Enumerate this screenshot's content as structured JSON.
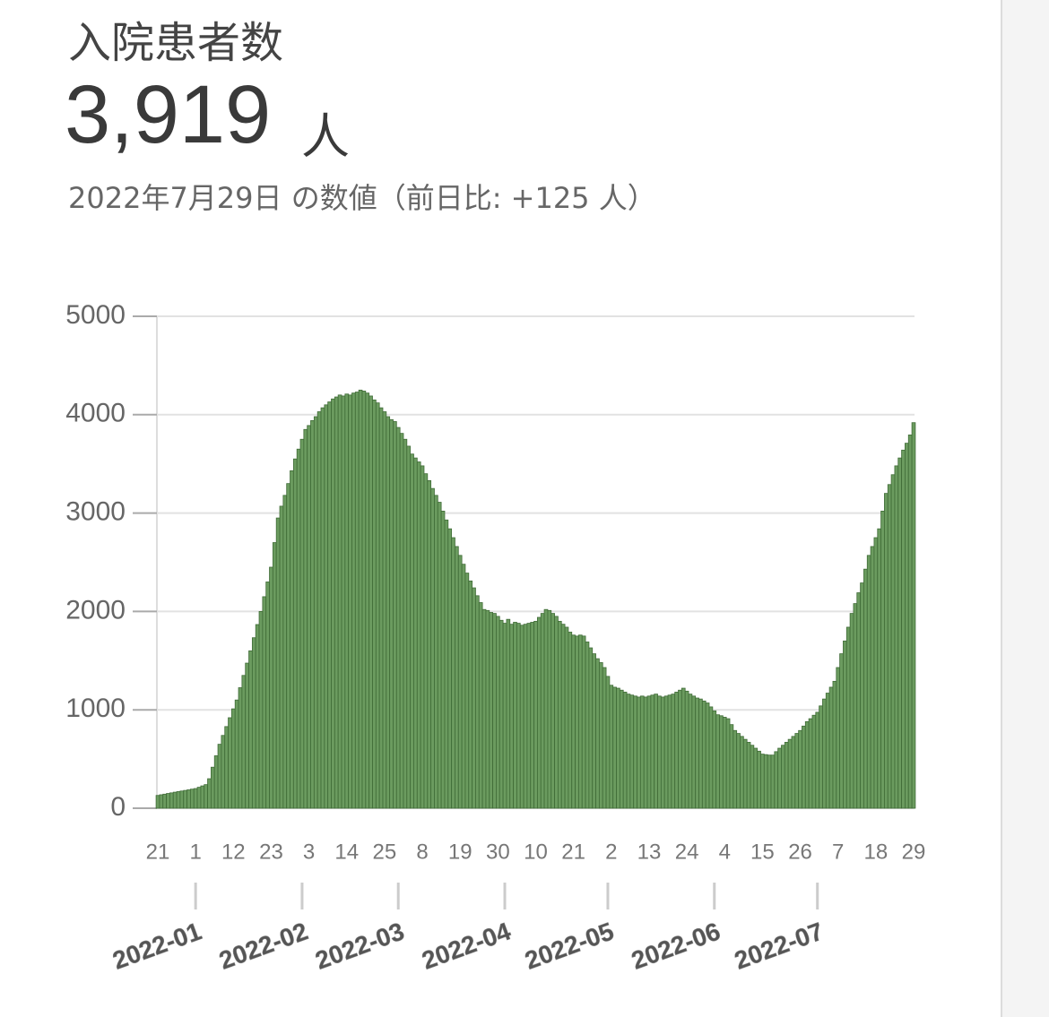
{
  "header": {
    "title": "入院患者数",
    "value": "3,919",
    "unit": "人",
    "subtitle": "2022年7月29日 の数値（前日比: +125 人）"
  },
  "chart_data": {
    "type": "bar",
    "color": "#6b9b5f",
    "ylim": [
      0,
      5000
    ],
    "yticks": [
      0,
      1000,
      2000,
      3000,
      4000,
      5000
    ],
    "grid": true,
    "categories": [
      "21",
      null,
      null,
      null,
      null,
      null,
      null,
      null,
      null,
      null,
      null,
      "1",
      null,
      null,
      null,
      null,
      null,
      null,
      null,
      null,
      null,
      null,
      "12",
      null,
      null,
      null,
      null,
      null,
      null,
      null,
      null,
      null,
      null,
      "23",
      null,
      null,
      null,
      null,
      null,
      null,
      null,
      null,
      null,
      null,
      "3",
      null,
      null,
      null,
      null,
      null,
      null,
      null,
      null,
      null,
      null,
      "14",
      null,
      null,
      null,
      null,
      null,
      null,
      null,
      null,
      null,
      null,
      "25",
      null,
      null,
      null,
      null,
      null,
      null,
      null,
      null,
      null,
      null,
      "8",
      null,
      null,
      null,
      null,
      null,
      null,
      null,
      null,
      null,
      null,
      "19",
      null,
      null,
      null,
      null,
      null,
      null,
      null,
      null,
      null,
      null,
      "30",
      null,
      null,
      null,
      null,
      null,
      null,
      null,
      null,
      null,
      null,
      "10",
      null,
      null,
      null,
      null,
      null,
      null,
      null,
      null,
      null,
      null,
      "21",
      null,
      null,
      null,
      null,
      null,
      null,
      null,
      null,
      null,
      null,
      "2",
      null,
      null,
      null,
      null,
      null,
      null,
      null,
      null,
      null,
      null,
      "13",
      null,
      null,
      null,
      null,
      null,
      null,
      null,
      null,
      null,
      null,
      "24",
      null,
      null,
      null,
      null,
      null,
      null,
      null,
      null,
      null,
      null,
      "4",
      null,
      null,
      null,
      null,
      null,
      null,
      null,
      null,
      null,
      null,
      "15",
      null,
      null,
      null,
      null,
      null,
      null,
      null,
      null,
      null,
      null,
      "26",
      null,
      null,
      null,
      null,
      null,
      null,
      null,
      null,
      null,
      null,
      "7",
      null,
      null,
      null,
      null,
      null,
      null,
      null,
      null,
      null,
      null,
      "18",
      null,
      null,
      null,
      null,
      null,
      null,
      null,
      null,
      null,
      null,
      "29"
    ],
    "values": [
      130,
      137,
      143,
      150,
      156,
      163,
      169,
      175,
      181,
      187,
      194,
      200,
      213,
      227,
      240,
      300,
      417,
      533,
      650,
      740,
      830,
      920,
      1010,
      1100,
      1225,
      1350,
      1475,
      1600,
      1733,
      1867,
      2000,
      2150,
      2300,
      2450,
      2700,
      2950,
      3070,
      3180,
      3300,
      3430,
      3550,
      3650,
      3750,
      3850,
      3890,
      3940,
      3980,
      4030,
      4070,
      4100,
      4130,
      4160,
      4180,
      4200,
      4190,
      4210,
      4200,
      4220,
      4230,
      4250,
      4240,
      4220,
      4190,
      4150,
      4120,
      4070,
      4030,
      3980,
      3950,
      3930,
      3870,
      3810,
      3750,
      3680,
      3600,
      3560,
      3520,
      3480,
      3400,
      3330,
      3250,
      3180,
      3110,
      3020,
      2930,
      2840,
      2750,
      2660,
      2570,
      2480,
      2390,
      2310,
      2240,
      2160,
      2090,
      2020,
      2010,
      1990,
      1980,
      1950,
      1910,
      1880,
      1920,
      1870,
      1890,
      1880,
      1860,
      1870,
      1880,
      1890,
      1900,
      1940,
      1980,
      2020,
      2010,
      1980,
      1950,
      1900,
      1870,
      1840,
      1790,
      1760,
      1750,
      1760,
      1750,
      1690,
      1630,
      1570,
      1520,
      1480,
      1430,
      1340,
      1250,
      1230,
      1220,
      1200,
      1180,
      1160,
      1150,
      1140,
      1130,
      1140,
      1130,
      1140,
      1150,
      1160,
      1140,
      1130,
      1140,
      1150,
      1160,
      1180,
      1200,
      1220,
      1190,
      1160,
      1140,
      1120,
      1110,
      1090,
      1070,
      1030,
      990,
      950,
      940,
      925,
      910,
      850,
      790,
      760,
      730,
      700,
      670,
      640,
      610,
      580,
      550,
      545,
      540,
      540,
      575,
      610,
      640,
      670,
      700,
      730,
      760,
      790,
      835,
      880,
      910,
      945,
      975,
      1040,
      1110,
      1170,
      1230,
      1290,
      1430,
      1570,
      1700,
      1840,
      1980,
      2080,
      2190,
      2290,
      2430,
      2570,
      2660,
      2750,
      2840,
      3020,
      3200,
      3290,
      3390,
      3480,
      3560,
      3640,
      3710,
      3794,
      3919
    ],
    "months": [
      {
        "label": "2022-01",
        "category": 11
      },
      {
        "label": "2022-02",
        "category": 42
      },
      {
        "label": "2022-03",
        "category": 70
      },
      {
        "label": "2022-04",
        "category": 101
      },
      {
        "label": "2022-05",
        "category": 131
      },
      {
        "label": "2022-06",
        "category": 162
      },
      {
        "label": "2022-07",
        "category": 192
      }
    ]
  }
}
